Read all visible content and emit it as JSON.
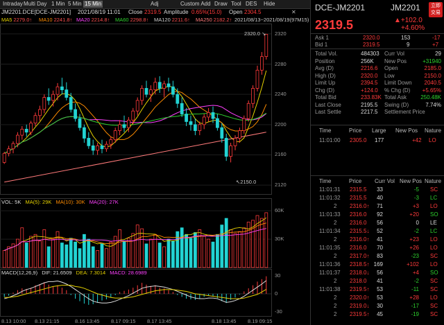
{
  "tabs": [
    "Intraday",
    "Multi Day",
    "1 Min",
    "5 Min",
    "15 Min",
    "Adj",
    "Custom Add",
    "Draw",
    "Tool",
    "DES",
    "Hide"
  ],
  "active_tab": "15 Min",
  "info": {
    "symbol": "JM2201.DCE[DCE-JM2201]",
    "datetime": "2021/08/19 11:01",
    "close_label": "Close",
    "close": "2319.5",
    "amp_label": "Amplitude",
    "amp": "0.65%(15.0)",
    "open_label": "Open",
    "open": "2304.5"
  },
  "ma": [
    {
      "label": "MA5",
      "value": "2279.0↑",
      "color": "#e6d200"
    },
    {
      "label": "MA10",
      "value": "2241.8↑",
      "color": "#ff8c00"
    },
    {
      "label": "MA20",
      "value": "2214.8↑",
      "color": "#ff40ff"
    },
    {
      "label": "MA60",
      "value": "2298.8↑",
      "color": "#2ed12e"
    },
    {
      "label": "MA120",
      "value": "2211.6↑",
      "color": "#d0d0d0"
    },
    {
      "label": "MA250",
      "value": "2182.2↑",
      "color": "#ff7a7a"
    }
  ],
  "range_text": "2021/08/13~2021/08/19(97M15)",
  "price_axis": [
    "2320",
    "2280",
    "2240",
    "2200",
    "2160",
    "2120"
  ],
  "high_annotation": "2320.0",
  "low_annotation": "2150.0",
  "vol_label": {
    "title": "VOL: 5K",
    "ma5": "MA(5): 29K",
    "ma10": "MA(10): 30K",
    "ma20": "MA(20): 27K"
  },
  "vol_axis": [
    "60K",
    "30K"
  ],
  "macd_label": {
    "title": "MACD(12,26,9)",
    "dif": "DIF: 21.6509",
    "dea": "DEA: 7.3014",
    "macd": "MACD: 28.6989"
  },
  "macd_axis": [
    "30",
    "0",
    "-30"
  ],
  "time_axis": [
    "8.13 10:00",
    "8.13 21:15",
    "8.16 13:45",
    "8.17 09:15",
    "8.17 13:45",
    "8.18 13:45",
    "8.19 09:15"
  ],
  "right": {
    "name": "DCE-JM2201",
    "code": "JM2201",
    "badge": "立即交易",
    "price": "2319.5",
    "change": "+102.0",
    "pct": "+4.60%",
    "ask": {
      "label": "Ask 1",
      "price": "2320.0",
      "qty": "153",
      "chg": "-17"
    },
    "bid": {
      "label": "Bid 1",
      "price": "2319.5",
      "qty": "9",
      "chg": "+7"
    },
    "stats": [
      [
        "Total Vol.",
        "484303",
        "Curr Vol",
        "29"
      ],
      [
        "Position",
        "256K",
        "New Pos",
        "+31940"
      ],
      [
        "Avg (D)",
        "2216.6",
        "Open",
        "2185.0"
      ],
      [
        "High (D)",
        "2320.0",
        "Low",
        "2150.0"
      ],
      [
        "Limit Up",
        "2394.5",
        "Limit Down",
        "2040.5"
      ],
      [
        "Chg (D)",
        "+124.0",
        "% Chg (D)",
        "+5.65%"
      ],
      [
        "Total Bid",
        "233.83K",
        "Total Ask",
        "250.48K"
      ],
      [
        "Last Close",
        "2195.5",
        "Swing (D)",
        "7.74%"
      ],
      [
        "Last Settle",
        "2217.5",
        "Settlement Price",
        ""
      ]
    ],
    "t1_header": [
      "Time",
      "Price",
      "Large",
      "New Pos",
      "Nature"
    ],
    "t1_row": [
      "11:01:00",
      "2305.0",
      "177",
      "+42",
      "LO"
    ],
    "t2_header": [
      "Time",
      "Price",
      "Curr Vol",
      "New Pos",
      "Nature"
    ],
    "ticks": [
      [
        "11:01:31",
        "2315.5",
        "33",
        "-5",
        "SC"
      ],
      [
        "11:01:32",
        "2315.5",
        "40",
        "-3",
        "LC"
      ],
      [
        "2",
        "2316.0↑",
        "71",
        "+3",
        "LO"
      ],
      [
        "11:01:33",
        "2316.0",
        "92",
        "+20",
        "SO"
      ],
      [
        "2",
        "2316.0",
        "56",
        "0",
        "LE"
      ],
      [
        "11:01:34",
        "2315.5↓",
        "52",
        "-2",
        "LC"
      ],
      [
        "2",
        "2316.0↑",
        "41",
        "+23",
        "LO"
      ],
      [
        "11:01:35",
        "2316.0",
        "70",
        "+26",
        "LO"
      ],
      [
        "2",
        "2317.0↑",
        "83",
        "-23",
        "SC"
      ],
      [
        "11:01:36",
        "2318.5↑",
        "169",
        "+102",
        "LO"
      ],
      [
        "11:01:37",
        "2318.0↓",
        "56",
        "+4",
        "SO"
      ],
      [
        "2",
        "2318.0",
        "41",
        "-2",
        "SC"
      ],
      [
        "11:01:38",
        "2319.5↑",
        "53",
        "-11",
        "SC"
      ],
      [
        "2",
        "2320.0↑",
        "53",
        "+28",
        "LO"
      ],
      [
        "2",
        "2319.0↓",
        "30",
        "-17",
        "SC"
      ],
      [
        "2",
        "2319.5↑",
        "45",
        "-19",
        "SC"
      ]
    ]
  },
  "candles": [
    [
      2150,
      2164,
      2148,
      2162
    ],
    [
      2162,
      2172,
      2158,
      2168
    ],
    [
      2168,
      2178,
      2162,
      2175
    ],
    [
      2175,
      2190,
      2170,
      2186
    ],
    [
      2186,
      2198,
      2180,
      2194
    ],
    [
      2194,
      2200,
      2184,
      2190
    ],
    [
      2190,
      2205,
      2186,
      2202
    ],
    [
      2202,
      2216,
      2198,
      2212
    ],
    [
      2212,
      2225,
      2205,
      2220
    ],
    [
      2220,
      2240,
      2215,
      2236
    ],
    [
      2236,
      2248,
      2226,
      2232
    ],
    [
      2232,
      2245,
      2224,
      2240
    ],
    [
      2240,
      2255,
      2232,
      2250
    ],
    [
      2250,
      2262,
      2240,
      2246
    ],
    [
      2246,
      2256,
      2232,
      2236
    ],
    [
      2236,
      2242,
      2216,
      2220
    ],
    [
      2220,
      2228,
      2204,
      2208
    ],
    [
      2208,
      2214,
      2192,
      2196
    ],
    [
      2196,
      2200,
      2176,
      2182
    ],
    [
      2182,
      2190,
      2168,
      2172
    ],
    [
      2172,
      2180,
      2160,
      2166
    ],
    [
      2166,
      2176,
      2160,
      2172
    ],
    [
      2172,
      2180,
      2162,
      2168
    ],
    [
      2168,
      2178,
      2164,
      2174
    ],
    [
      2174,
      2184,
      2168,
      2180
    ],
    [
      2180,
      2196,
      2176,
      2192
    ],
    [
      2192,
      2206,
      2186,
      2200
    ],
    [
      2200,
      2212,
      2190,
      2196
    ],
    [
      2196,
      2210,
      2190,
      2206
    ],
    [
      2206,
      2222,
      2200,
      2218
    ],
    [
      2218,
      2236,
      2212,
      2232
    ],
    [
      2232,
      2252,
      2226,
      2248
    ],
    [
      2248,
      2258,
      2236,
      2240
    ],
    [
      2240,
      2252,
      2230,
      2246
    ],
    [
      2246,
      2262,
      2240,
      2256
    ],
    [
      2256,
      2264,
      2242,
      2248
    ],
    [
      2248,
      2258,
      2236,
      2254
    ],
    [
      2254,
      2262,
      2244,
      2250
    ],
    [
      2250,
      2258,
      2236,
      2240
    ],
    [
      2240,
      2248,
      2222,
      2228
    ],
    [
      2228,
      2236,
      2210,
      2214
    ],
    [
      2214,
      2222,
      2198,
      2204
    ],
    [
      2204,
      2212,
      2192,
      2200
    ],
    [
      2200,
      2208,
      2186,
      2192
    ],
    [
      2192,
      2204,
      2186,
      2200
    ],
    [
      2200,
      2214,
      2194,
      2210
    ],
    [
      2210,
      2222,
      2204,
      2216
    ],
    [
      2216,
      2224,
      2202,
      2208
    ],
    [
      2208,
      2214,
      2192,
      2196
    ],
    [
      2196,
      2202,
      2176,
      2182
    ],
    [
      2182,
      2188,
      2152,
      2158
    ],
    [
      2158,
      2176,
      2150,
      2172
    ],
    [
      2172,
      2186,
      2166,
      2182
    ],
    [
      2182,
      2196,
      2176,
      2192
    ],
    [
      2192,
      2212,
      2188,
      2208
    ],
    [
      2208,
      2232,
      2204,
      2228
    ],
    [
      2228,
      2252,
      2222,
      2248
    ],
    [
      2248,
      2278,
      2244,
      2272
    ],
    [
      2272,
      2296,
      2266,
      2290
    ],
    [
      2290,
      2320,
      2286,
      2319.5
    ]
  ],
  "volumes": [
    18,
    22,
    25,
    30,
    42,
    26,
    33,
    35,
    28,
    40,
    22,
    30,
    38,
    26,
    24,
    31,
    27,
    20,
    35,
    30,
    22,
    18,
    25,
    20,
    27,
    33,
    40,
    28,
    31,
    36,
    45,
    41,
    25,
    30,
    35,
    26,
    22,
    30,
    28,
    38,
    42,
    35,
    31,
    37,
    40,
    33,
    30,
    27,
    35,
    45,
    52,
    40,
    36,
    38,
    42,
    48,
    50,
    55,
    52,
    58
  ],
  "macd_hist": [
    -5,
    -3,
    2,
    6,
    9,
    8,
    10,
    14,
    16,
    19,
    15,
    12,
    14,
    10,
    6,
    -2,
    -8,
    -12,
    -16,
    -18,
    -17,
    -14,
    -11,
    -9,
    -6,
    -2,
    3,
    5,
    7,
    10,
    14,
    18,
    15,
    13,
    14,
    10,
    9,
    6,
    3,
    -2,
    -5,
    -8,
    -9,
    -10,
    -8,
    -5,
    -3,
    -4,
    -7,
    -12,
    -15,
    -10,
    -6,
    -1,
    4,
    9,
    14,
    20,
    24,
    28.6989
  ],
  "dif": [
    -8,
    -6,
    -3,
    0,
    4,
    7,
    9,
    12,
    15,
    18,
    20,
    20,
    21,
    19,
    16,
    12,
    7,
    2,
    -3,
    -8,
    -12,
    -14,
    -15,
    -15,
    -14,
    -12,
    -9,
    -6,
    -3,
    1,
    5,
    9,
    11,
    12,
    13,
    12,
    11,
    9,
    7,
    4,
    1,
    -2,
    -5,
    -7,
    -8,
    -8,
    -7,
    -7,
    -8,
    -11,
    -14,
    -13,
    -11,
    -8,
    -4,
    1,
    6,
    11,
    16,
    21.6509
  ],
  "dea": [
    -6,
    -6,
    -5,
    -4,
    -2,
    0,
    2,
    4,
    6,
    8,
    10,
    12,
    13,
    14,
    14,
    14,
    12,
    11,
    9,
    6,
    3,
    0,
    -2,
    -4,
    -6,
    -7,
    -7,
    -7,
    -6,
    -5,
    -3,
    -1,
    1,
    3,
    5,
    6,
    7,
    7,
    7,
    6,
    5,
    4,
    2,
    0,
    -1,
    -2,
    -3,
    -4,
    -5,
    -6,
    -7,
    -8,
    -8,
    -8,
    -7,
    -5,
    -3,
    -1,
    3,
    7.3014
  ]
}
